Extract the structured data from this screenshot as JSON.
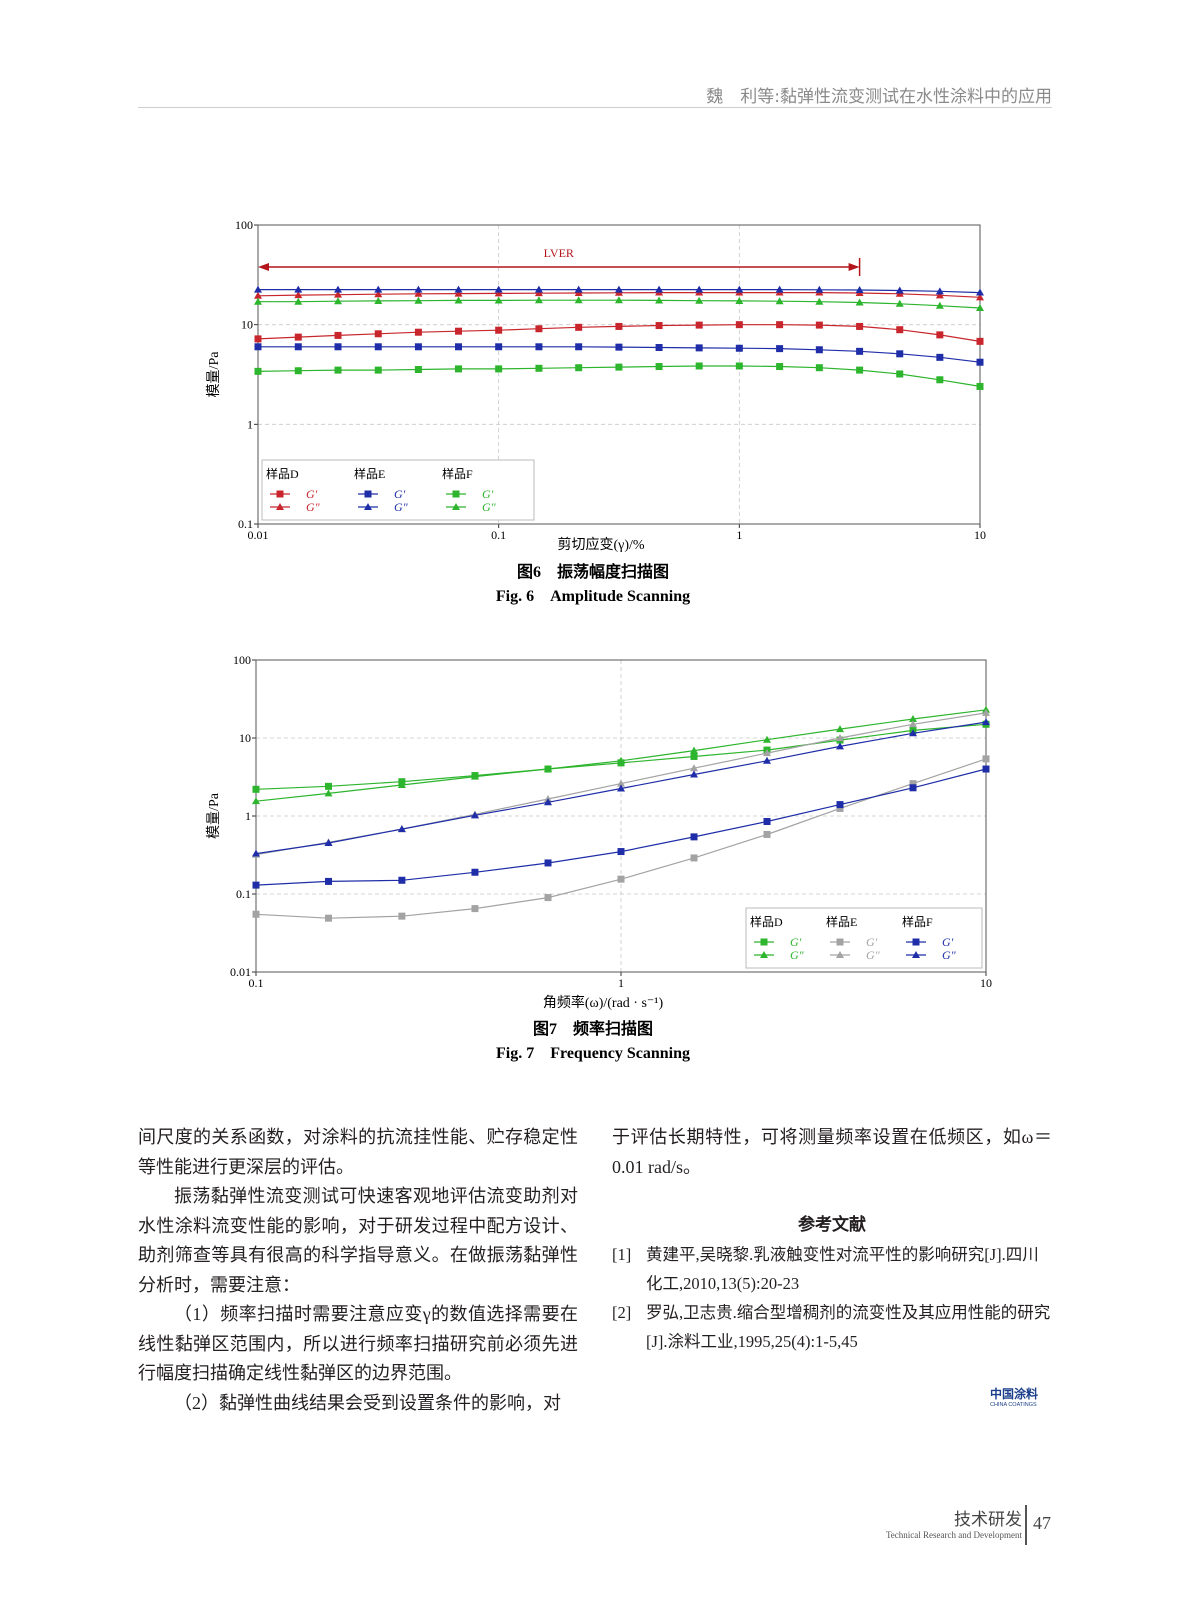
{
  "header": {
    "title": "魏　利等:黏弹性流变测试在水性涂料中的应用"
  },
  "chart_data": [
    {
      "type": "line",
      "log_x": true,
      "log_y": true,
      "grid": true,
      "legend": "lower left",
      "x_label": "剪切应变(γ)/%",
      "y_label": "模量/Pa",
      "caption_cn": "图6　振荡幅度扫描图",
      "caption_en": "Fig. 6　Amplitude Scanning",
      "xlim": [
        0.01,
        10
      ],
      "ylim": [
        0.1,
        100
      ],
      "xticks": [
        0.01,
        0.1,
        1,
        10
      ],
      "yticks": [
        0.1,
        1,
        10,
        100
      ],
      "annotations": [
        {
          "text": "LVER",
          "x_range": [
            0.01,
            3.16
          ]
        }
      ],
      "x": [
        0.01,
        0.0147,
        0.0215,
        0.0316,
        0.0464,
        0.0681,
        0.1,
        0.147,
        0.215,
        0.316,
        0.464,
        0.681,
        1,
        1.47,
        2.15,
        3.16,
        4.64,
        6.81,
        10
      ],
      "series": [
        {
          "group": "样品D",
          "name": "G'",
          "marker": "square",
          "color": "#c8262c",
          "values": [
            7.2,
            7.5,
            7.8,
            8.1,
            8.4,
            8.6,
            8.8,
            9.1,
            9.4,
            9.6,
            9.8,
            9.9,
            10.0,
            10.0,
            9.9,
            9.6,
            8.9,
            7.9,
            6.8
          ]
        },
        {
          "group": "样品D",
          "name": "G\"",
          "marker": "triangle",
          "color": "#c8262c",
          "values": [
            19.5,
            19.8,
            20,
            20.2,
            20.4,
            20.5,
            20.6,
            20.7,
            20.8,
            20.9,
            21,
            21,
            21,
            21,
            21,
            20.8,
            20.4,
            19.7,
            18.8
          ]
        },
        {
          "group": "样品E",
          "name": "G'",
          "marker": "square",
          "color": "#1f2ea8",
          "values": [
            6.0,
            6.0,
            6.0,
            6.0,
            6.0,
            6.0,
            6.0,
            6.0,
            6.0,
            5.95,
            5.9,
            5.85,
            5.8,
            5.75,
            5.6,
            5.4,
            5.1,
            4.7,
            4.2
          ]
        },
        {
          "group": "样品E",
          "name": "G\"",
          "marker": "triangle",
          "color": "#1f2ea8",
          "values": [
            22.5,
            22.5,
            22.5,
            22.5,
            22.5,
            22.5,
            22.5,
            22.5,
            22.5,
            22.5,
            22.5,
            22.5,
            22.5,
            22.5,
            22.4,
            22.3,
            22.0,
            21.6,
            21
          ]
        },
        {
          "group": "样品F",
          "name": "G'",
          "marker": "square",
          "color": "#2db52d",
          "values": [
            3.4,
            3.45,
            3.5,
            3.5,
            3.55,
            3.6,
            3.6,
            3.65,
            3.7,
            3.75,
            3.8,
            3.85,
            3.85,
            3.8,
            3.7,
            3.5,
            3.2,
            2.8,
            2.4
          ]
        },
        {
          "group": "样品F",
          "name": "G\"",
          "marker": "triangle",
          "color": "#2db52d",
          "values": [
            17,
            17,
            17.2,
            17.3,
            17.4,
            17.5,
            17.5,
            17.6,
            17.6,
            17.6,
            17.5,
            17.4,
            17.3,
            17.2,
            17,
            16.7,
            16.2,
            15.5,
            14.7
          ]
        }
      ]
    },
    {
      "type": "line",
      "log_x": true,
      "log_y": true,
      "grid": true,
      "legend": "lower right",
      "x_label": "角频率(ω)/(rad · s⁻¹)",
      "y_label": "模量/Pa",
      "caption_cn": "图7　频率扫描图",
      "caption_en": "Fig. 7　Frequency Scanning",
      "xlim": [
        0.1,
        10
      ],
      "ylim": [
        0.01,
        100
      ],
      "xticks": [
        0.1,
        1,
        10
      ],
      "yticks": [
        0.01,
        0.1,
        1,
        10,
        100
      ],
      "x": [
        0.1,
        0.158,
        0.251,
        0.398,
        0.631,
        1,
        1.585,
        2.512,
        3.981,
        6.31,
        10
      ],
      "series": [
        {
          "group": "样品D",
          "name": "G'",
          "marker": "square",
          "color": "#2db52d",
          "values": [
            2.2,
            2.4,
            2.75,
            3.3,
            4.0,
            4.8,
            5.8,
            7.0,
            9.4,
            12.5,
            15
          ]
        },
        {
          "group": "样品D",
          "name": "G\"",
          "marker": "triangle",
          "color": "#2db52d",
          "values": [
            1.55,
            1.95,
            2.5,
            3.2,
            4.0,
            5.1,
            6.9,
            9.5,
            13,
            17.5,
            23
          ]
        },
        {
          "group": "样品E",
          "name": "G'",
          "marker": "square",
          "color": "#a3a3a3",
          "values": [
            0.055,
            0.049,
            0.052,
            0.065,
            0.09,
            0.155,
            0.29,
            0.58,
            1.25,
            2.6,
            5.4
          ]
        },
        {
          "group": "样品E",
          "name": "G\"",
          "marker": "triangle",
          "color": "#a3a3a3",
          "values": [
            0.32,
            0.46,
            0.68,
            1.05,
            1.65,
            2.6,
            4.1,
            6.4,
            10,
            15,
            21
          ]
        },
        {
          "group": "样品F",
          "name": "G'",
          "marker": "square",
          "color": "#1f2ea8",
          "values": [
            0.13,
            0.145,
            0.15,
            0.19,
            0.25,
            0.35,
            0.54,
            0.85,
            1.4,
            2.3,
            4.0
          ]
        },
        {
          "group": "样品F",
          "name": "G\"",
          "marker": "triangle",
          "color": "#1f2ea8",
          "values": [
            0.33,
            0.45,
            0.68,
            1.02,
            1.5,
            2.25,
            3.4,
            5.1,
            7.8,
            11.5,
            16
          ]
        }
      ]
    }
  ],
  "body": {
    "left": [
      "间尺度的关系函数，对涂料的抗流挂性能、贮存稳定性等性能进行更深层的评估。",
      "振荡黏弹性流变测试可快速客观地评估流变助剂对水性涂料流变性能的影响，对于研发过程中配方设计、助剂筛查等具有很高的科学指导意义。在做振荡黏弹性分析时，需要注意：",
      "（1）频率扫描时需要注意应变γ的数值选择需要在线性黏弹区范围内，所以进行频率扫描研究前必须先进行幅度扫描确定线性黏弹区的边界范围。",
      "（2）黏弹性曲线结果会受到设置条件的影响，对"
    ],
    "right": [
      "于评估长期特性，可将测量频率设置在低频区，如ω＝0.01 rad/s。"
    ]
  },
  "references": {
    "title": "参考文献",
    "items": [
      {
        "num": "[1]",
        "text": "黄建平,吴晓黎.乳液触变性对流平性的影响研究[J].四川化工,2010,13(5):20-23"
      },
      {
        "num": "[2]",
        "text": "罗弘,卫志贵.缩合型增稠剂的流变性及其应用性能的研究[J].涂料工业,1995,25(4):1-5,45"
      }
    ]
  },
  "logo": {
    "cn": "中国涂料",
    "en": "CHINA COATINGS"
  },
  "footer": {
    "section_cn": "技术研发",
    "section_en": "Technical Research and Development",
    "page": "47"
  }
}
